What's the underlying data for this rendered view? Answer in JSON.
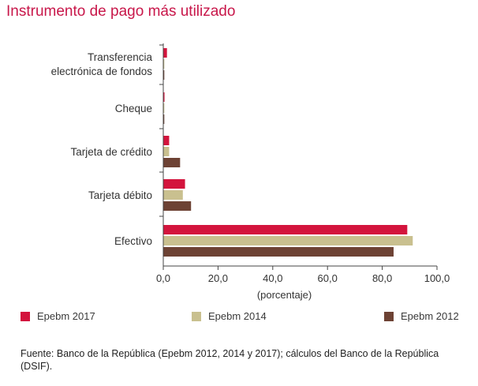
{
  "title": "Instrumento de pago más utilizado",
  "chart_data": {
    "type": "bar",
    "orientation": "horizontal",
    "title": "Instrumento de pago más utilizado",
    "xlabel": "(porcentaje)",
    "ylabel": "",
    "xlim": [
      0,
      100
    ],
    "x_ticks": [
      "0,0",
      "20,0",
      "40,0",
      "60,0",
      "80,0",
      "100,0"
    ],
    "categories": [
      "Transferencia electrónica de fondos",
      "Cheque",
      "Tarjeta de crédito",
      "Tarjeta débito",
      "Efectivo"
    ],
    "category_lines": [
      [
        "Transferencia",
        "electrónica de fondos"
      ],
      [
        "Cheque"
      ],
      [
        "Tarjeta de crédito"
      ],
      [
        "Tarjeta débito"
      ],
      [
        "Efectivo"
      ]
    ],
    "series": [
      {
        "name": "Epebm 2017",
        "color": "#d3143d",
        "values": [
          1.2,
          0.3,
          2.0,
          7.8,
          89.0
        ]
      },
      {
        "name": "Epebm 2014",
        "color": "#c9c08f",
        "values": [
          0.2,
          0.2,
          2.0,
          7.0,
          91.0
        ]
      },
      {
        "name": "Epebm 2012",
        "color": "#6d4234",
        "values": [
          0.0,
          0.2,
          6.0,
          10.0,
          84.0
        ]
      }
    ],
    "legend_position": "bottom"
  },
  "source": "Fuente: Banco de la República (Epebm 2012, 2014 y 2017); cálculos del Banco de la República (DSIF)."
}
